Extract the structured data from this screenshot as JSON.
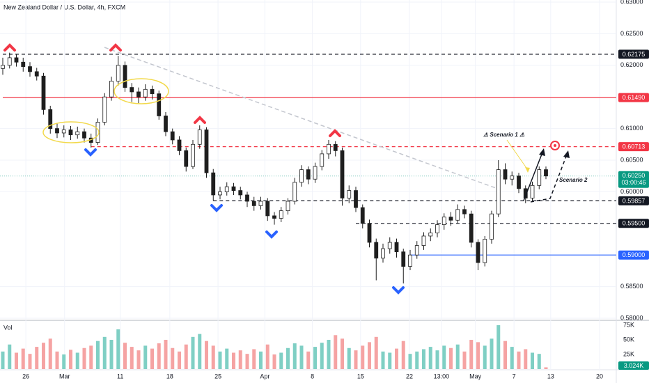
{
  "chart_data": {
    "type": "candlestick",
    "title": "New Zealand Dollar / U.S. Dollar, 4h, FXCM",
    "volume_title": "Vol",
    "series": [
      {
        "name": "NZDUSD",
        "up_color": "#ffffff",
        "down_color": "#1e1e1e",
        "values": [
          [
            0.6195,
            0.6212,
            0.6185,
            0.62
          ],
          [
            0.62,
            0.622,
            0.6195,
            0.6212
          ],
          [
            0.6212,
            0.6218,
            0.6198,
            0.6205
          ],
          [
            0.6205,
            0.6212,
            0.619,
            0.6198
          ],
          [
            0.6198,
            0.6205,
            0.6182,
            0.619
          ],
          [
            0.619,
            0.6196,
            0.6176,
            0.6183
          ],
          [
            0.6183,
            0.6188,
            0.6122,
            0.613
          ],
          [
            0.613,
            0.6136,
            0.6092,
            0.61
          ],
          [
            0.61,
            0.6108,
            0.6085,
            0.6093
          ],
          [
            0.6093,
            0.6105,
            0.6086,
            0.6098
          ],
          [
            0.6098,
            0.6104,
            0.6082,
            0.609
          ],
          [
            0.609,
            0.6103,
            0.6084,
            0.6095
          ],
          [
            0.6095,
            0.61,
            0.6078,
            0.6085
          ],
          [
            0.6085,
            0.6092,
            0.607,
            0.6078
          ],
          [
            0.6078,
            0.6116,
            0.6074,
            0.611
          ],
          [
            0.611,
            0.6156,
            0.6105,
            0.615
          ],
          [
            0.615,
            0.6182,
            0.6144,
            0.6175
          ],
          [
            0.6175,
            0.6215,
            0.6168,
            0.62
          ],
          [
            0.62,
            0.6206,
            0.6158,
            0.6165
          ],
          [
            0.6165,
            0.6172,
            0.6142,
            0.6158
          ],
          [
            0.6158,
            0.6165,
            0.614,
            0.615
          ],
          [
            0.615,
            0.617,
            0.6144,
            0.6162
          ],
          [
            0.6162,
            0.6168,
            0.6146,
            0.6155
          ],
          [
            0.6155,
            0.616,
            0.6114,
            0.612
          ],
          [
            0.612,
            0.6126,
            0.6088,
            0.6095
          ],
          [
            0.6095,
            0.61,
            0.6075,
            0.6082
          ],
          [
            0.6082,
            0.6088,
            0.6058,
            0.6065
          ],
          [
            0.6065,
            0.607,
            0.6032,
            0.604
          ],
          [
            0.604,
            0.6082,
            0.6036,
            0.6075
          ],
          [
            0.6075,
            0.6105,
            0.6068,
            0.6098
          ],
          [
            0.6098,
            0.6102,
            0.6022,
            0.603
          ],
          [
            0.603,
            0.6036,
            0.5986,
            0.5995
          ],
          [
            0.5995,
            0.6008,
            0.5988,
            0.6
          ],
          [
            0.6,
            0.6015,
            0.5994,
            0.6008
          ],
          [
            0.6008,
            0.6014,
            0.5995,
            0.6002
          ],
          [
            0.6002,
            0.6008,
            0.5988,
            0.5995
          ],
          [
            0.5995,
            0.6,
            0.5976,
            0.5985
          ],
          [
            0.5985,
            0.5992,
            0.597,
            0.5978
          ],
          [
            0.5978,
            0.5992,
            0.5972,
            0.5985
          ],
          [
            0.5985,
            0.599,
            0.5954,
            0.5962
          ],
          [
            0.5962,
            0.5968,
            0.5948,
            0.5958
          ],
          [
            0.5958,
            0.5976,
            0.5952,
            0.597
          ],
          [
            0.597,
            0.599,
            0.5964,
            0.5985
          ],
          [
            0.5985,
            0.6022,
            0.598,
            0.6015
          ],
          [
            0.6015,
            0.6042,
            0.6008,
            0.6035
          ],
          [
            0.6035,
            0.604,
            0.6012,
            0.602
          ],
          [
            0.602,
            0.6046,
            0.6014,
            0.604
          ],
          [
            0.604,
            0.6066,
            0.6034,
            0.606
          ],
          [
            0.606,
            0.6082,
            0.6052,
            0.6075
          ],
          [
            0.6075,
            0.608,
            0.6056,
            0.6065
          ],
          [
            0.6065,
            0.607,
            0.5978,
            0.599
          ],
          [
            0.599,
            0.601,
            0.5982,
            0.6002
          ],
          [
            0.6002,
            0.6008,
            0.5968,
            0.5975
          ],
          [
            0.5975,
            0.598,
            0.5942,
            0.595
          ],
          [
            0.595,
            0.5956,
            0.5912,
            0.592
          ],
          [
            0.592,
            0.5926,
            0.586,
            0.5895
          ],
          [
            0.5895,
            0.5918,
            0.5888,
            0.591
          ],
          [
            0.591,
            0.5928,
            0.5902,
            0.592
          ],
          [
            0.592,
            0.5926,
            0.5896,
            0.5905
          ],
          [
            0.5905,
            0.591,
            0.5855,
            0.5882
          ],
          [
            0.5882,
            0.5908,
            0.5876,
            0.59
          ],
          [
            0.59,
            0.5922,
            0.5894,
            0.5915
          ],
          [
            0.5915,
            0.5936,
            0.5908,
            0.593
          ],
          [
            0.593,
            0.5942,
            0.5922,
            0.5935
          ],
          [
            0.5935,
            0.5955,
            0.5928,
            0.5948
          ],
          [
            0.5948,
            0.5966,
            0.594,
            0.596
          ],
          [
            0.596,
            0.5968,
            0.5946,
            0.5955
          ],
          [
            0.5955,
            0.598,
            0.595,
            0.5972
          ],
          [
            0.5972,
            0.5978,
            0.5958,
            0.5965
          ],
          [
            0.5965,
            0.597,
            0.5912,
            0.592
          ],
          [
            0.592,
            0.5925,
            0.5876,
            0.5888
          ],
          [
            0.5888,
            0.593,
            0.5882,
            0.5925
          ],
          [
            0.5925,
            0.597,
            0.5918,
            0.5965
          ],
          [
            0.5965,
            0.605,
            0.596,
            0.6035
          ],
          [
            0.6035,
            0.6045,
            0.6012,
            0.602
          ],
          [
            0.602,
            0.6032,
            0.601,
            0.6025
          ],
          [
            0.6025,
            0.603,
            0.5998,
            0.6005
          ],
          [
            0.6005,
            0.601,
            0.5982,
            0.599
          ],
          [
            0.599,
            0.6016,
            0.5984,
            0.601
          ],
          [
            0.601,
            0.604,
            0.6004,
            0.6035
          ],
          [
            0.6035,
            0.604,
            0.602,
            0.6025
          ]
        ]
      }
    ],
    "volume": {
      "up_color": "#7fcfc4",
      "down_color": "#f5a3a3",
      "values": [
        30000,
        42000,
        28000,
        35000,
        26000,
        38000,
        45000,
        52000,
        30000,
        25000,
        33000,
        28000,
        36000,
        40000,
        48000,
        55000,
        50000,
        68000,
        45000,
        38000,
        32000,
        40000,
        35000,
        44000,
        50000,
        36000,
        30000,
        42000,
        55000,
        60000,
        48000,
        40000,
        30000,
        35000,
        28000,
        32000,
        26000,
        34000,
        30000,
        42000,
        25000,
        28000,
        36000,
        44000,
        40000,
        30000,
        38000,
        45000,
        50000,
        58000,
        52000,
        36000,
        32000,
        40000,
        46000,
        55000,
        30000,
        28000,
        35000,
        48000,
        26000,
        30000,
        34000,
        38000,
        32000,
        40000,
        36000,
        42000,
        30000,
        50000,
        46000,
        40000,
        52000,
        75000,
        48000,
        38000,
        30000,
        34000,
        28000,
        26000,
        3024
      ],
      "last_label": "3.024K",
      "ylim": [
        0,
        75000
      ],
      "yticks": [
        {
          "value": 25000,
          "label": "25K"
        },
        {
          "value": 50000,
          "label": "50K"
        },
        {
          "value": 75000,
          "label": "75K"
        }
      ]
    },
    "ylim": [
      0.58,
      0.63
    ],
    "yticks": [
      {
        "value": 0.58,
        "label": "0.58000"
      },
      {
        "value": 0.585,
        "label": "0.58500"
      },
      {
        "value": 0.6,
        "label": "0.60000"
      },
      {
        "value": 0.605,
        "label": "0.60500"
      },
      {
        "value": 0.61,
        "label": "0.61000"
      },
      {
        "value": 0.62,
        "label": "0.62000"
      },
      {
        "value": 0.625,
        "label": "0.62500"
      },
      {
        "value": 0.63,
        "label": "0.63000"
      }
    ],
    "xticks": [
      {
        "value": 3.4,
        "label": "26"
      },
      {
        "value": 9.1,
        "label": "Mar"
      },
      {
        "value": 17.3,
        "label": "11"
      },
      {
        "value": 24.6,
        "label": "18"
      },
      {
        "value": 31.7,
        "label": "25"
      },
      {
        "value": 38.6,
        "label": "Apr"
      },
      {
        "value": 45.6,
        "label": "8"
      },
      {
        "value": 52.7,
        "label": "15"
      },
      {
        "value": 59.9,
        "label": "22"
      },
      {
        "value": 64.6,
        "label": "13:00"
      },
      {
        "value": 69.6,
        "label": "May"
      },
      {
        "value": 75.3,
        "label": "7"
      },
      {
        "value": 80.7,
        "label": "13"
      },
      {
        "value": 87.9,
        "label": "20"
      }
    ],
    "levels": [
      {
        "value": 0.62175,
        "label": "0.62175",
        "color": "#131722",
        "dashed": true,
        "from": 0
      },
      {
        "value": 0.6149,
        "label": "0.61490",
        "color": "#f23645",
        "dashed": false,
        "from": 0
      },
      {
        "value": 0.60713,
        "label": "0.60713",
        "color": "#f23645",
        "dashed": true,
        "from": 13
      },
      {
        "value": 0.59857,
        "label": "0.59857",
        "color": "#131722",
        "dashed": true,
        "from": 31
      },
      {
        "value": 0.595,
        "label": "0.59500",
        "color": "#131722",
        "dashed": true,
        "from": 52
      },
      {
        "value": 0.59,
        "label": "0.59000",
        "color": "#2962ff",
        "dashed": false,
        "from": 60
      }
    ],
    "last_price": {
      "value": 0.6025,
      "label": "0.60250",
      "countdown": "03:00:46",
      "color": "#089981"
    },
    "annotations": [
      "⚠ Scenario 1 ⚠",
      "Scenario 2"
    ],
    "grid": true
  }
}
